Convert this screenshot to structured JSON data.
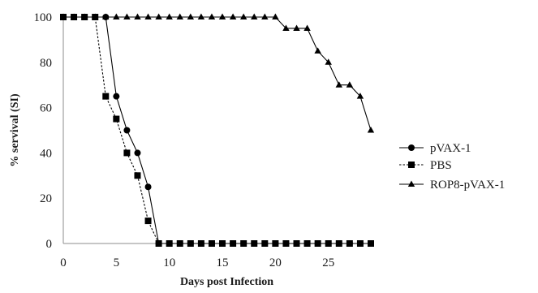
{
  "chart_data": {
    "type": "line",
    "xlabel": "Days post Infection",
    "ylabel": "% servival (SI)",
    "xlim": [
      0,
      30
    ],
    "ylim": [
      0,
      100
    ],
    "xticks": [
      0,
      5,
      10,
      15,
      20,
      25
    ],
    "yticks": [
      0,
      20,
      40,
      60,
      80,
      100
    ],
    "grid": false,
    "legend_position": "right",
    "series": [
      {
        "name": "pVAX-1",
        "marker": "circle",
        "line_style": "solid",
        "color": "#000000",
        "x": [
          0,
          1,
          2,
          3,
          4,
          5,
          6,
          7,
          8,
          9,
          10,
          11,
          12,
          13,
          14,
          15,
          16,
          17,
          18,
          19,
          20,
          21,
          22,
          23,
          24,
          25,
          26,
          27,
          28,
          29
        ],
        "y": [
          100,
          100,
          100,
          100,
          100,
          65,
          50,
          40,
          25,
          0,
          0,
          0,
          0,
          0,
          0,
          0,
          0,
          0,
          0,
          0,
          0,
          0,
          0,
          0,
          0,
          0,
          0,
          0,
          0,
          0
        ]
      },
      {
        "name": "PBS",
        "marker": "square",
        "line_style": "dashed",
        "color": "#000000",
        "x": [
          0,
          1,
          2,
          3,
          4,
          5,
          6,
          7,
          8,
          9,
          10,
          11,
          12,
          13,
          14,
          15,
          16,
          17,
          18,
          19,
          20,
          21,
          22,
          23,
          24,
          25,
          26,
          27,
          28,
          29
        ],
        "y": [
          100,
          100,
          100,
          100,
          65,
          55,
          40,
          30,
          10,
          0,
          0,
          0,
          0,
          0,
          0,
          0,
          0,
          0,
          0,
          0,
          0,
          0,
          0,
          0,
          0,
          0,
          0,
          0,
          0,
          0
        ]
      },
      {
        "name": "ROP8-pVAX-1",
        "marker": "triangle",
        "line_style": "solid",
        "color": "#000000",
        "x": [
          0,
          1,
          2,
          3,
          4,
          5,
          6,
          7,
          8,
          9,
          10,
          11,
          12,
          13,
          14,
          15,
          16,
          17,
          18,
          19,
          20,
          21,
          22,
          23,
          24,
          25,
          26,
          27,
          28,
          29
        ],
        "y": [
          100,
          100,
          100,
          100,
          100,
          100,
          100,
          100,
          100,
          100,
          100,
          100,
          100,
          100,
          100,
          100,
          100,
          100,
          100,
          100,
          100,
          95,
          95,
          95,
          85,
          80,
          70,
          70,
          65,
          50
        ]
      }
    ]
  }
}
